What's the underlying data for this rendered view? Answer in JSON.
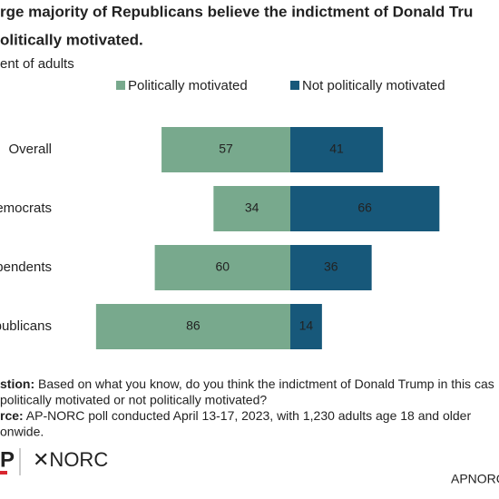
{
  "chart_data": {
    "type": "diverging_bar",
    "title_lines": [
      "rge majority of Republicans believe the indictment of Donald Tru",
      "olitically motivated."
    ],
    "subtitle": "ent of adults",
    "categories": [
      "Overall",
      "emocrats",
      "pendents",
      "publicans"
    ],
    "series": [
      {
        "name": "Politically motivated",
        "color": "#78a98d",
        "values": [
          57,
          34,
          60,
          86
        ]
      },
      {
        "name": "Not politically motivated",
        "color": "#17587a",
        "values": [
          41,
          66,
          36,
          14
        ]
      }
    ],
    "notes": [
      {
        "bold": "stion:",
        "text": " Based on what you know, do you think the indictment of Donald Trump in this cas"
      },
      {
        "bold": "",
        "text": "politically motivated or not politically motivated?"
      },
      {
        "bold": "rce:",
        "text": " AP-NORC poll conducted April 13-17, 2023, with 1,230 adults age 18 and older"
      },
      {
        "bold": "",
        "text": "onwide."
      }
    ],
    "logos": [
      "P",
      "✕NORC"
    ],
    "source_tag": "APNORC"
  }
}
